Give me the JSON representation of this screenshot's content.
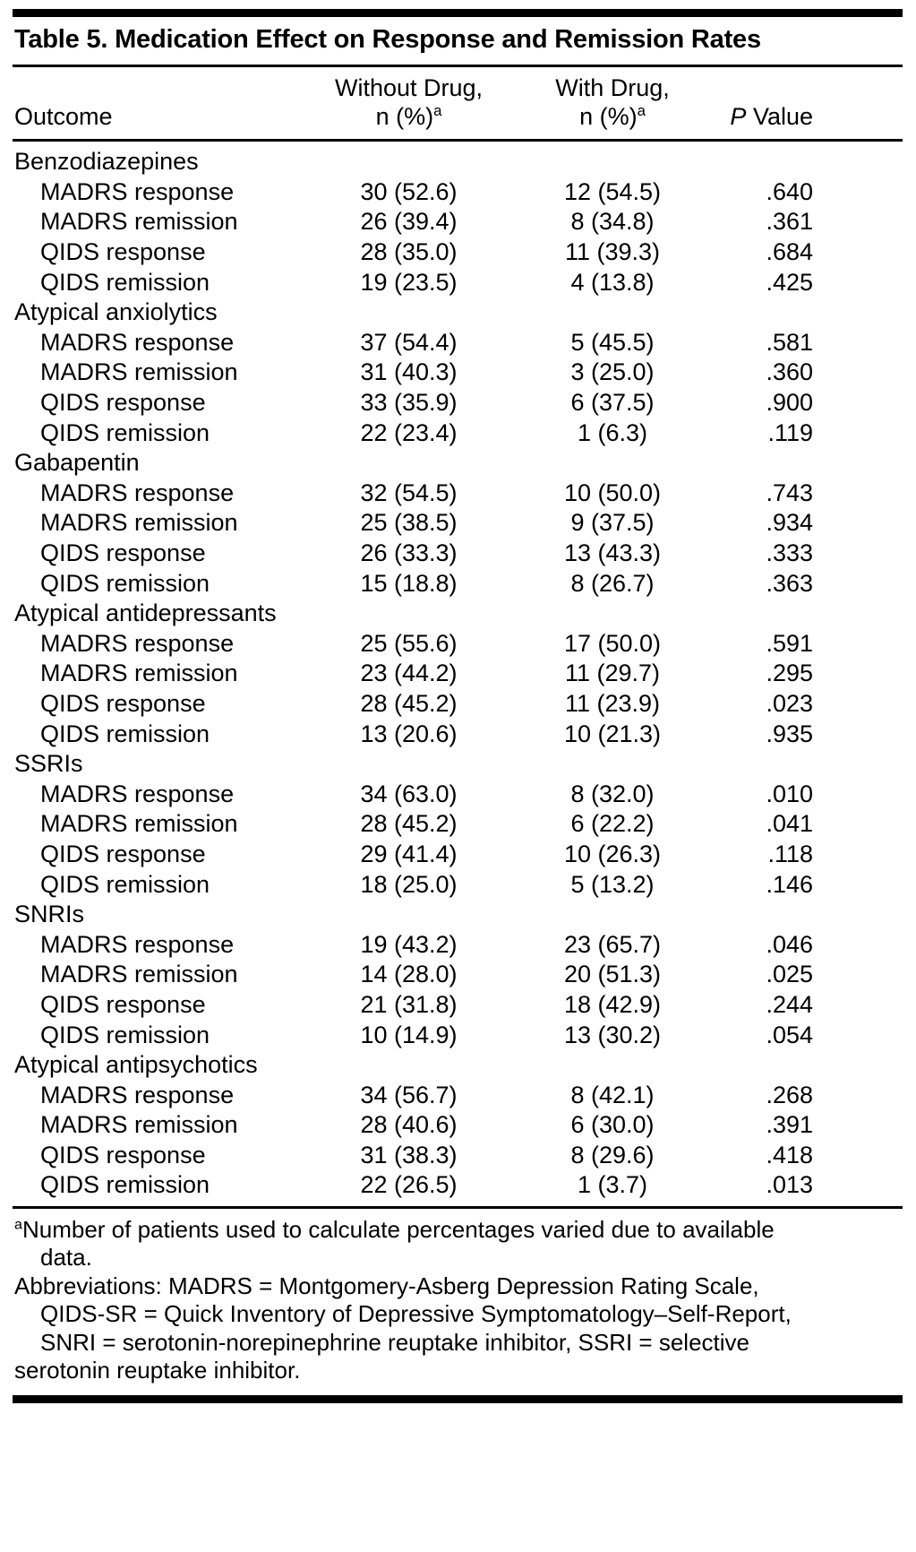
{
  "page": {
    "background_color": "#ffffff",
    "text_color": "#000000",
    "rule_color": "#000000"
  },
  "table": {
    "title": "Table 5. Medication Effect on Response and Remission Rates",
    "columns": {
      "outcome": "Outcome",
      "without_line1": "Without Drug,",
      "with_line1": "With Drug,",
      "n_pct": "n (%)",
      "footnote_marker": "a",
      "p_italic": "P",
      "p_rest": "Value"
    },
    "groups": [
      {
        "name": "Benzodiazepines",
        "rows": [
          {
            "label": "MADRS response",
            "without_drug": "30 (52.6)",
            "with_drug": "12 (54.5)",
            "p_value": ".640"
          },
          {
            "label": "MADRS remission",
            "without_drug": "26 (39.4)",
            "with_drug": "8 (34.8)",
            "p_value": ".361"
          },
          {
            "label": "QIDS response",
            "without_drug": "28 (35.0)",
            "with_drug": "11 (39.3)",
            "p_value": ".684"
          },
          {
            "label": "QIDS remission",
            "without_drug": "19 (23.5)",
            "with_drug": "4 (13.8)",
            "p_value": ".425"
          }
        ]
      },
      {
        "name": "Atypical anxiolytics",
        "rows": [
          {
            "label": "MADRS response",
            "without_drug": "37 (54.4)",
            "with_drug": "5 (45.5)",
            "p_value": ".581"
          },
          {
            "label": "MADRS remission",
            "without_drug": "31 (40.3)",
            "with_drug": "3 (25.0)",
            "p_value": ".360"
          },
          {
            "label": "QIDS response",
            "without_drug": "33 (35.9)",
            "with_drug": "6 (37.5)",
            "p_value": ".900"
          },
          {
            "label": "QIDS remission",
            "without_drug": "22 (23.4)",
            "with_drug": "1 (6.3)",
            "p_value": ".119"
          }
        ]
      },
      {
        "name": "Gabapentin",
        "rows": [
          {
            "label": "MADRS response",
            "without_drug": "32 (54.5)",
            "with_drug": "10 (50.0)",
            "p_value": ".743"
          },
          {
            "label": "MADRS remission",
            "without_drug": "25 (38.5)",
            "with_drug": "9 (37.5)",
            "p_value": ".934"
          },
          {
            "label": "QIDS response",
            "without_drug": "26 (33.3)",
            "with_drug": "13 (43.3)",
            "p_value": ".333"
          },
          {
            "label": "QIDS remission",
            "without_drug": "15 (18.8)",
            "with_drug": "8 (26.7)",
            "p_value": ".363"
          }
        ]
      },
      {
        "name": "Atypical antidepressants",
        "rows": [
          {
            "label": "MADRS response",
            "without_drug": "25 (55.6)",
            "with_drug": "17 (50.0)",
            "p_value": ".591"
          },
          {
            "label": "MADRS remission",
            "without_drug": "23 (44.2)",
            "with_drug": "11 (29.7)",
            "p_value": ".295"
          },
          {
            "label": "QIDS response",
            "without_drug": "28 (45.2)",
            "with_drug": "11 (23.9)",
            "p_value": ".023"
          },
          {
            "label": "QIDS remission",
            "without_drug": "13 (20.6)",
            "with_drug": "10 (21.3)",
            "p_value": ".935"
          }
        ]
      },
      {
        "name": "SSRIs",
        "rows": [
          {
            "label": "MADRS response",
            "without_drug": "34 (63.0)",
            "with_drug": "8 (32.0)",
            "p_value": ".010"
          },
          {
            "label": "MADRS remission",
            "without_drug": "28 (45.2)",
            "with_drug": "6 (22.2)",
            "p_value": ".041"
          },
          {
            "label": "QIDS response",
            "without_drug": "29 (41.4)",
            "with_drug": "10 (26.3)",
            "p_value": ".118"
          },
          {
            "label": "QIDS remission",
            "without_drug": "18 (25.0)",
            "with_drug": "5 (13.2)",
            "p_value": ".146"
          }
        ]
      },
      {
        "name": "SNRIs",
        "rows": [
          {
            "label": "MADRS response",
            "without_drug": "19 (43.2)",
            "with_drug": "23 (65.7)",
            "p_value": ".046"
          },
          {
            "label": "MADRS remission",
            "without_drug": "14 (28.0)",
            "with_drug": "20 (51.3)",
            "p_value": ".025"
          },
          {
            "label": "QIDS response",
            "without_drug": "21 (31.8)",
            "with_drug": "18 (42.9)",
            "p_value": ".244"
          },
          {
            "label": "QIDS remission",
            "without_drug": "10 (14.9)",
            "with_drug": "13 (30.2)",
            "p_value": ".054"
          }
        ]
      },
      {
        "name": "Atypical antipsychotics",
        "rows": [
          {
            "label": "MADRS response",
            "without_drug": "34 (56.7)",
            "with_drug": "8 (42.1)",
            "p_value": ".268"
          },
          {
            "label": "MADRS remission",
            "without_drug": "28 (40.6)",
            "with_drug": "6 (30.0)",
            "p_value": ".391"
          },
          {
            "label": "QIDS response",
            "without_drug": "31 (38.3)",
            "with_drug": "8 (29.6)",
            "p_value": ".418"
          },
          {
            "label": "QIDS remission",
            "without_drug": "22 (26.5)",
            "with_drug": "1 (3.7)",
            "p_value": ".013"
          }
        ]
      }
    ],
    "footnotes": {
      "marker": "a",
      "lines": [
        {
          "text": "Number of patients used to calculate percentages varied due to available",
          "indent": false,
          "sup": true
        },
        {
          "text": "data.",
          "indent": true,
          "sup": false
        },
        {
          "text": "Abbreviations: MADRS = Montgomery-Asberg Depression Rating Scale,",
          "indent": false,
          "sup": false
        },
        {
          "text": "QIDS-SR = Quick Inventory of Depressive Symptomatology–Self-Report,",
          "indent": true,
          "sup": false
        },
        {
          "text": "SNRI = serotonin-norepinephrine reuptake inhibitor, SSRI = selective",
          "indent": true,
          "sup": false
        },
        {
          "text": "serotonin reuptake inhibitor.",
          "indent": false,
          "sup": false
        }
      ]
    }
  }
}
